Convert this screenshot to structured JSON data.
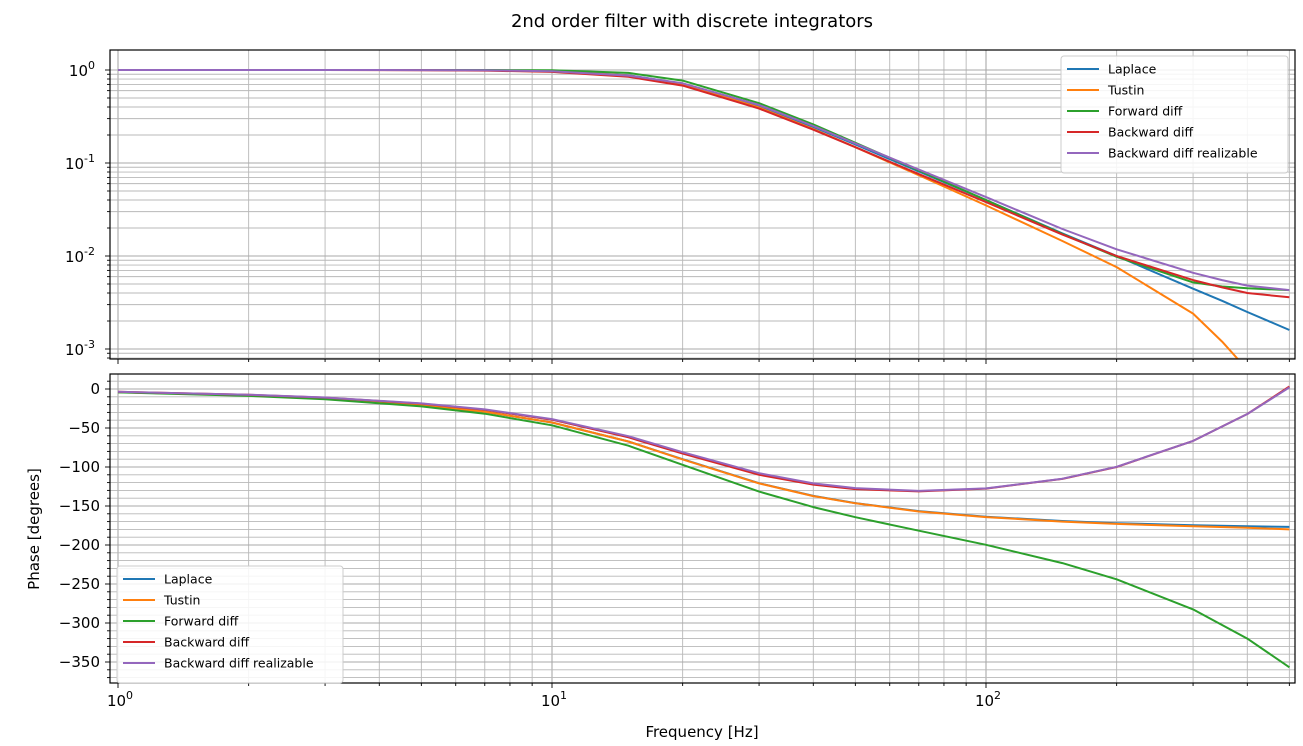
{
  "figure": {
    "title": "2nd order filter with discrete integrators",
    "xlabel": "Frequency [Hz]",
    "phase_ylabel": "Phase [degrees]",
    "x_tick_labels": [
      "10^0",
      "10^1",
      "10^2"
    ],
    "mag_tick_labels": [
      "10^0",
      "10^-1",
      "10^-2",
      "10^-3"
    ],
    "phase_tick_labels": [
      "0",
      "−50",
      "−100",
      "−150",
      "−200",
      "−250",
      "−300",
      "−350"
    ]
  },
  "legend": {
    "position_top": "upper right",
    "position_bottom": "lower left",
    "entries": [
      {
        "label": "Laplace",
        "color": "#1f77b4"
      },
      {
        "label": "Tustin",
        "color": "#ff7f0e"
      },
      {
        "label": "Forward diff",
        "color": "#2ca02c"
      },
      {
        "label": "Backward diff",
        "color": "#d62728"
      },
      {
        "label": "Backward diff realizable",
        "color": "#9467bd"
      }
    ]
  },
  "chart_data": [
    {
      "type": "line",
      "title": "2nd order filter with discrete integrators",
      "xlabel": "",
      "ylabel": "",
      "xscale": "log",
      "yscale": "log",
      "xlim": [
        0.96,
        560
      ],
      "ylim": [
        0.00079,
        1.65
      ],
      "grid": "major+minor",
      "legend_position": "upper right",
      "x": [
        1,
        2,
        3,
        5,
        7,
        10,
        15,
        20,
        30,
        40,
        50,
        70,
        100,
        150,
        200,
        300,
        350,
        400,
        500
      ],
      "series": [
        {
          "name": "Laplace",
          "color": "#1f77b4",
          "values": [
            1.0,
            1.0,
            1.0,
            0.999,
            0.995,
            0.975,
            0.879,
            0.714,
            0.409,
            0.244,
            0.158,
            0.081,
            0.04,
            0.0175,
            0.01,
            0.00445,
            0.0033,
            0.0025,
            0.0016
          ]
        },
        {
          "name": "Tustin",
          "color": "#ff7f0e",
          "values": [
            1.0,
            1.0,
            1.0,
            0.999,
            0.994,
            0.972,
            0.872,
            0.7,
            0.395,
            0.232,
            0.148,
            0.074,
            0.035,
            0.0145,
            0.0076,
            0.0024,
            0.0012,
            0.0006,
            0.0001
          ]
        },
        {
          "name": "Forward diff",
          "color": "#2ca02c",
          "values": [
            1.0,
            1.0,
            1.0,
            1.0,
            1.0,
            0.995,
            0.93,
            0.77,
            0.44,
            0.26,
            0.165,
            0.083,
            0.04,
            0.0172,
            0.0098,
            0.0052,
            0.0047,
            0.0045,
            0.0043
          ]
        },
        {
          "name": "Backward diff",
          "color": "#d62728",
          "values": [
            1.0,
            1.0,
            0.999,
            0.995,
            0.985,
            0.955,
            0.845,
            0.68,
            0.385,
            0.228,
            0.148,
            0.076,
            0.038,
            0.017,
            0.01,
            0.0055,
            0.0046,
            0.004,
            0.0036
          ]
        },
        {
          "name": "Backward diff realizable",
          "color": "#9467bd",
          "values": [
            1.0,
            1.0,
            1.0,
            0.998,
            0.992,
            0.97,
            0.87,
            0.72,
            0.42,
            0.25,
            0.162,
            0.085,
            0.043,
            0.0195,
            0.0118,
            0.0066,
            0.0055,
            0.0048,
            0.0043
          ]
        }
      ]
    },
    {
      "type": "line",
      "xlabel": "Frequency [Hz]",
      "ylabel": "Phase [degrees]",
      "xscale": "log",
      "xlim": [
        0.96,
        560
      ],
      "ylim": [
        -377,
        19
      ],
      "grid": "major+minor",
      "legend_position": "lower left",
      "x": [
        1,
        2,
        3,
        5,
        7,
        10,
        15,
        20,
        30,
        40,
        50,
        70,
        100,
        150,
        200,
        300,
        400,
        500
      ],
      "series": [
        {
          "name": "Laplace",
          "color": "#1f77b4",
          "values": [
            -4.0,
            -8.1,
            -12.1,
            -20.5,
            -29.2,
            -43.0,
            -67.3,
            -90.0,
            -120.8,
            -137.0,
            -146.3,
            -156.5,
            -163.7,
            -169.2,
            -172.0,
            -174.6,
            -176.0,
            -176.8
          ]
        },
        {
          "name": "Tustin",
          "color": "#ff7f0e",
          "values": [
            -4.0,
            -8.1,
            -12.1,
            -20.5,
            -29.2,
            -43.0,
            -67.3,
            -90.2,
            -121.0,
            -137.3,
            -146.6,
            -157.0,
            -164.2,
            -170.0,
            -173.0,
            -176.0,
            -178.0,
            -180.0
          ]
        },
        {
          "name": "Forward diff",
          "color": "#2ca02c",
          "values": [
            -4.4,
            -8.8,
            -13.2,
            -22.3,
            -31.7,
            -46.6,
            -72.7,
            -97.2,
            -131.6,
            -151.4,
            -164.3,
            -181.7,
            -199.7,
            -223.2,
            -244.0,
            -282.6,
            -320.0,
            -356.8
          ]
        },
        {
          "name": "Backward diff",
          "color": "#d62728",
          "values": [
            -3.6,
            -7.4,
            -11.0,
            -18.7,
            -26.7,
            -39.4,
            -61.9,
            -82.8,
            -110.0,
            -122.6,
            -128.3,
            -131.3,
            -127.7,
            -115.2,
            -100.0,
            -66.6,
            -32.0,
            3.2
          ]
        },
        {
          "name": "Backward diff realizable",
          "color": "#9467bd",
          "values": [
            -3.6,
            -7.3,
            -10.9,
            -18.4,
            -26.2,
            -38.6,
            -60.5,
            -81.0,
            -108.0,
            -121.0,
            -127.0,
            -130.6,
            -127.4,
            -115.0,
            -99.8,
            -66.5,
            -32.0,
            2.0
          ]
        }
      ]
    }
  ]
}
